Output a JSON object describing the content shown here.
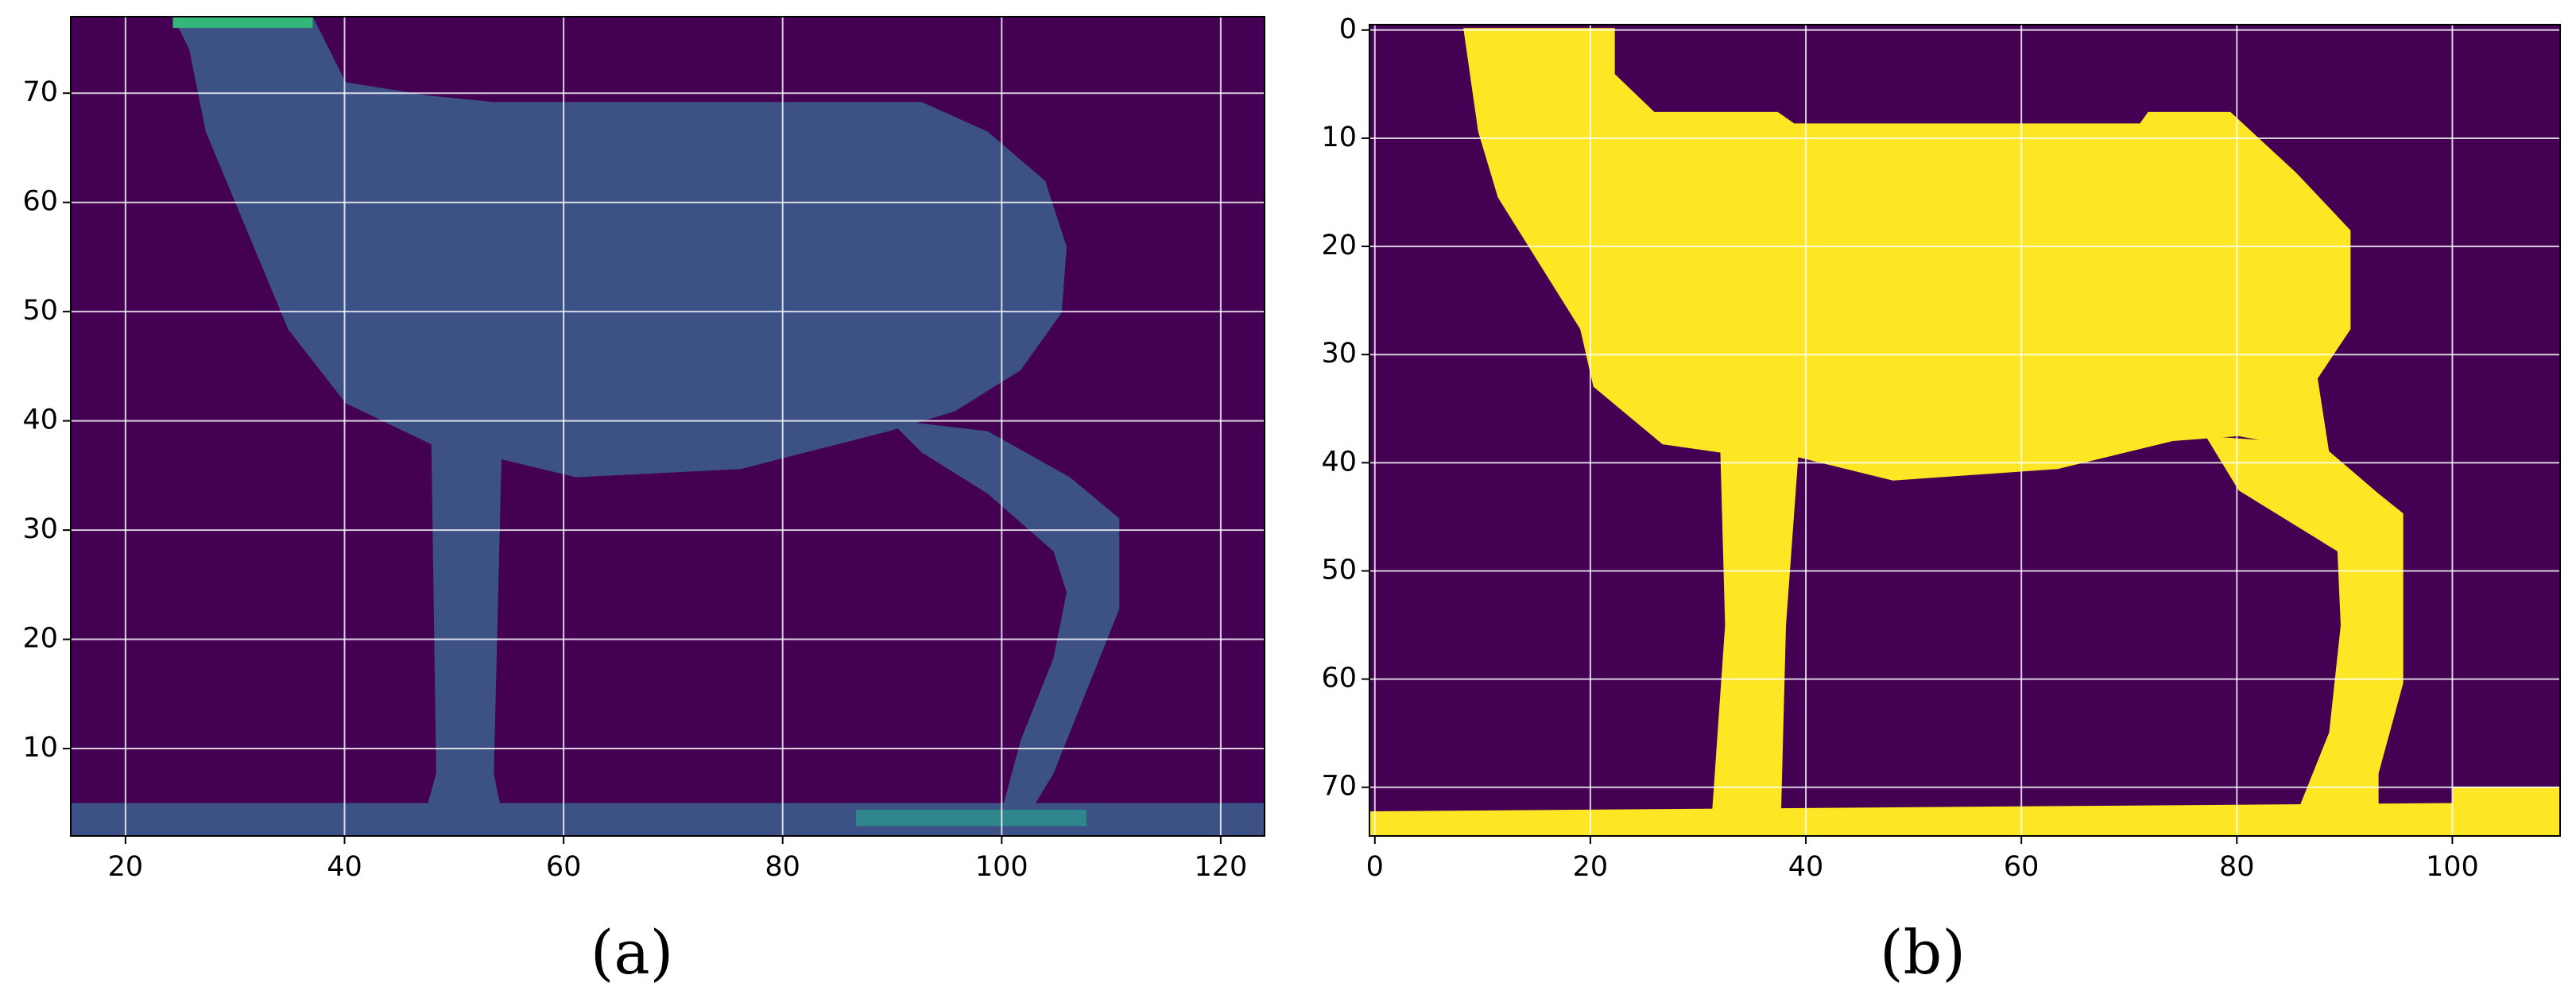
{
  "chart_data": [
    {
      "type": "image",
      "caption": "(a)",
      "background": "#440154",
      "color": "#3b5f8e",
      "xlim": [
        15,
        124
      ],
      "ylim": [
        2,
        77
      ],
      "xticks": [
        20,
        40,
        60,
        80,
        100,
        120
      ],
      "yticks": [
        10,
        20,
        30,
        40,
        50,
        60,
        70
      ],
      "grid": true
    },
    {
      "type": "image",
      "caption": "(b)",
      "background": "#440154",
      "color": "#fde725",
      "xlim": [
        -0.5,
        110
      ],
      "ylim": [
        74.5,
        -0.5
      ],
      "xticks": [
        0,
        20,
        40,
        60,
        80,
        100
      ],
      "yticks": [
        0,
        10,
        20,
        30,
        40,
        50,
        60,
        70
      ],
      "grid": true
    }
  ]
}
